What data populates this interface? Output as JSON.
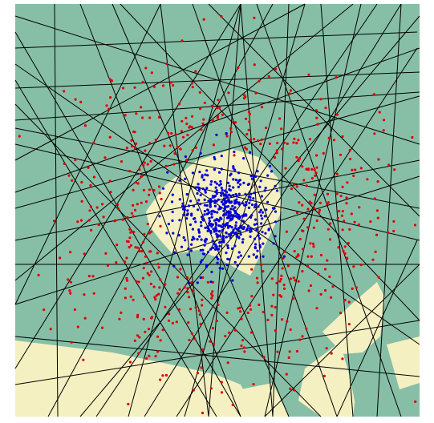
{
  "figure": {
    "name": "decision-region-plot",
    "colors": {
      "background": "#ffffff",
      "outside_region": "#87bfa6",
      "inside_region": "#f4f0c1",
      "boundary_line": "#000000",
      "class_outer_points": "#e00000",
      "class_inner_points": "#0000dd"
    }
  }
}
